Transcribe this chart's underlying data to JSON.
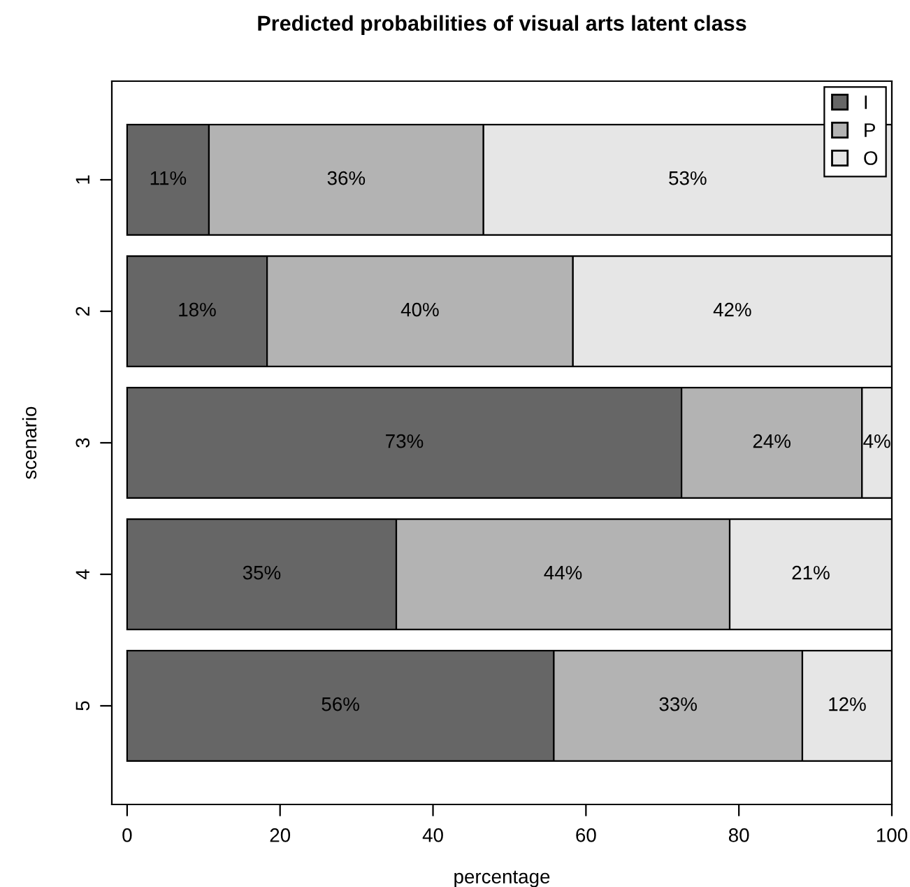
{
  "chart_data": {
    "type": "bar",
    "orientation": "horizontal",
    "stacked": true,
    "title": "Predicted probabilities of visual arts latent class",
    "xlabel": "percentage",
    "ylabel": "scenario",
    "categories": [
      "1",
      "2",
      "3",
      "4",
      "5"
    ],
    "series": [
      {
        "name": "I",
        "color": "#666666",
        "values": [
          10.7,
          18.3,
          72.5,
          35.2,
          55.8
        ],
        "value_labels": [
          "11%",
          "18%",
          "73%",
          "35%",
          "56%"
        ]
      },
      {
        "name": "P",
        "color": "#b3b3b3",
        "values": [
          35.9,
          40.0,
          23.6,
          43.6,
          32.5
        ],
        "value_labels": [
          "36%",
          "40%",
          "24%",
          "44%",
          "33%"
        ]
      },
      {
        "name": "O",
        "color": "#e6e6e6",
        "values": [
          53.4,
          41.7,
          3.9,
          21.2,
          11.7
        ],
        "value_labels": [
          "53%",
          "42%",
          "4%",
          "21%",
          "12%"
        ]
      }
    ],
    "xlim": [
      -2,
      100
    ],
    "xticks": [
      0,
      20,
      40,
      60,
      80,
      100
    ],
    "grid": false,
    "legend": "top right"
  }
}
